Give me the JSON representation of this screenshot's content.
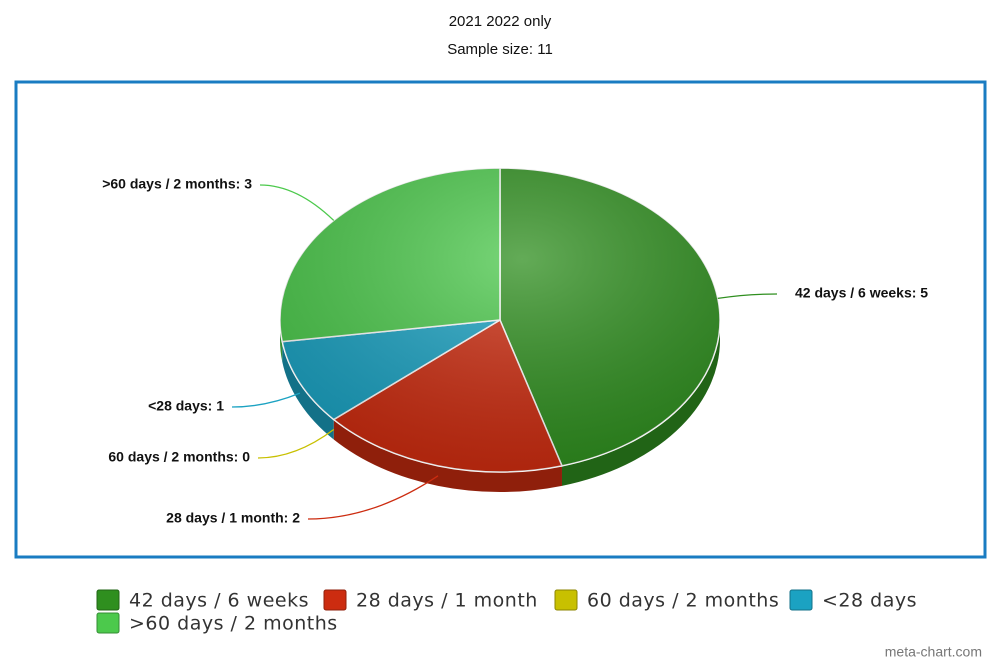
{
  "chart_data": {
    "type": "pie",
    "title": "2021 2022 only",
    "subtitle": "Sample size: 11",
    "categories": [
      "42 days / 6 weeks",
      "28 days / 1 month",
      "60 days / 2 months",
      "<28 days",
      ">60 days / 2 months"
    ],
    "values": [
      5,
      2,
      0,
      1,
      3
    ],
    "value_labels": [
      "42 days / 6 weeks: 5",
      "28 days / 1 month: 2",
      "60 days / 2 months: 0",
      "<28 days: 1",
      ">60 days / 2 months: 3"
    ],
    "colors": [
      "#2f8f1f",
      "#cc2c10",
      "#c8c000",
      "#1ba2c2",
      "#4cc94c"
    ],
    "legend": "bottom",
    "watermark": "meta-chart.com"
  }
}
